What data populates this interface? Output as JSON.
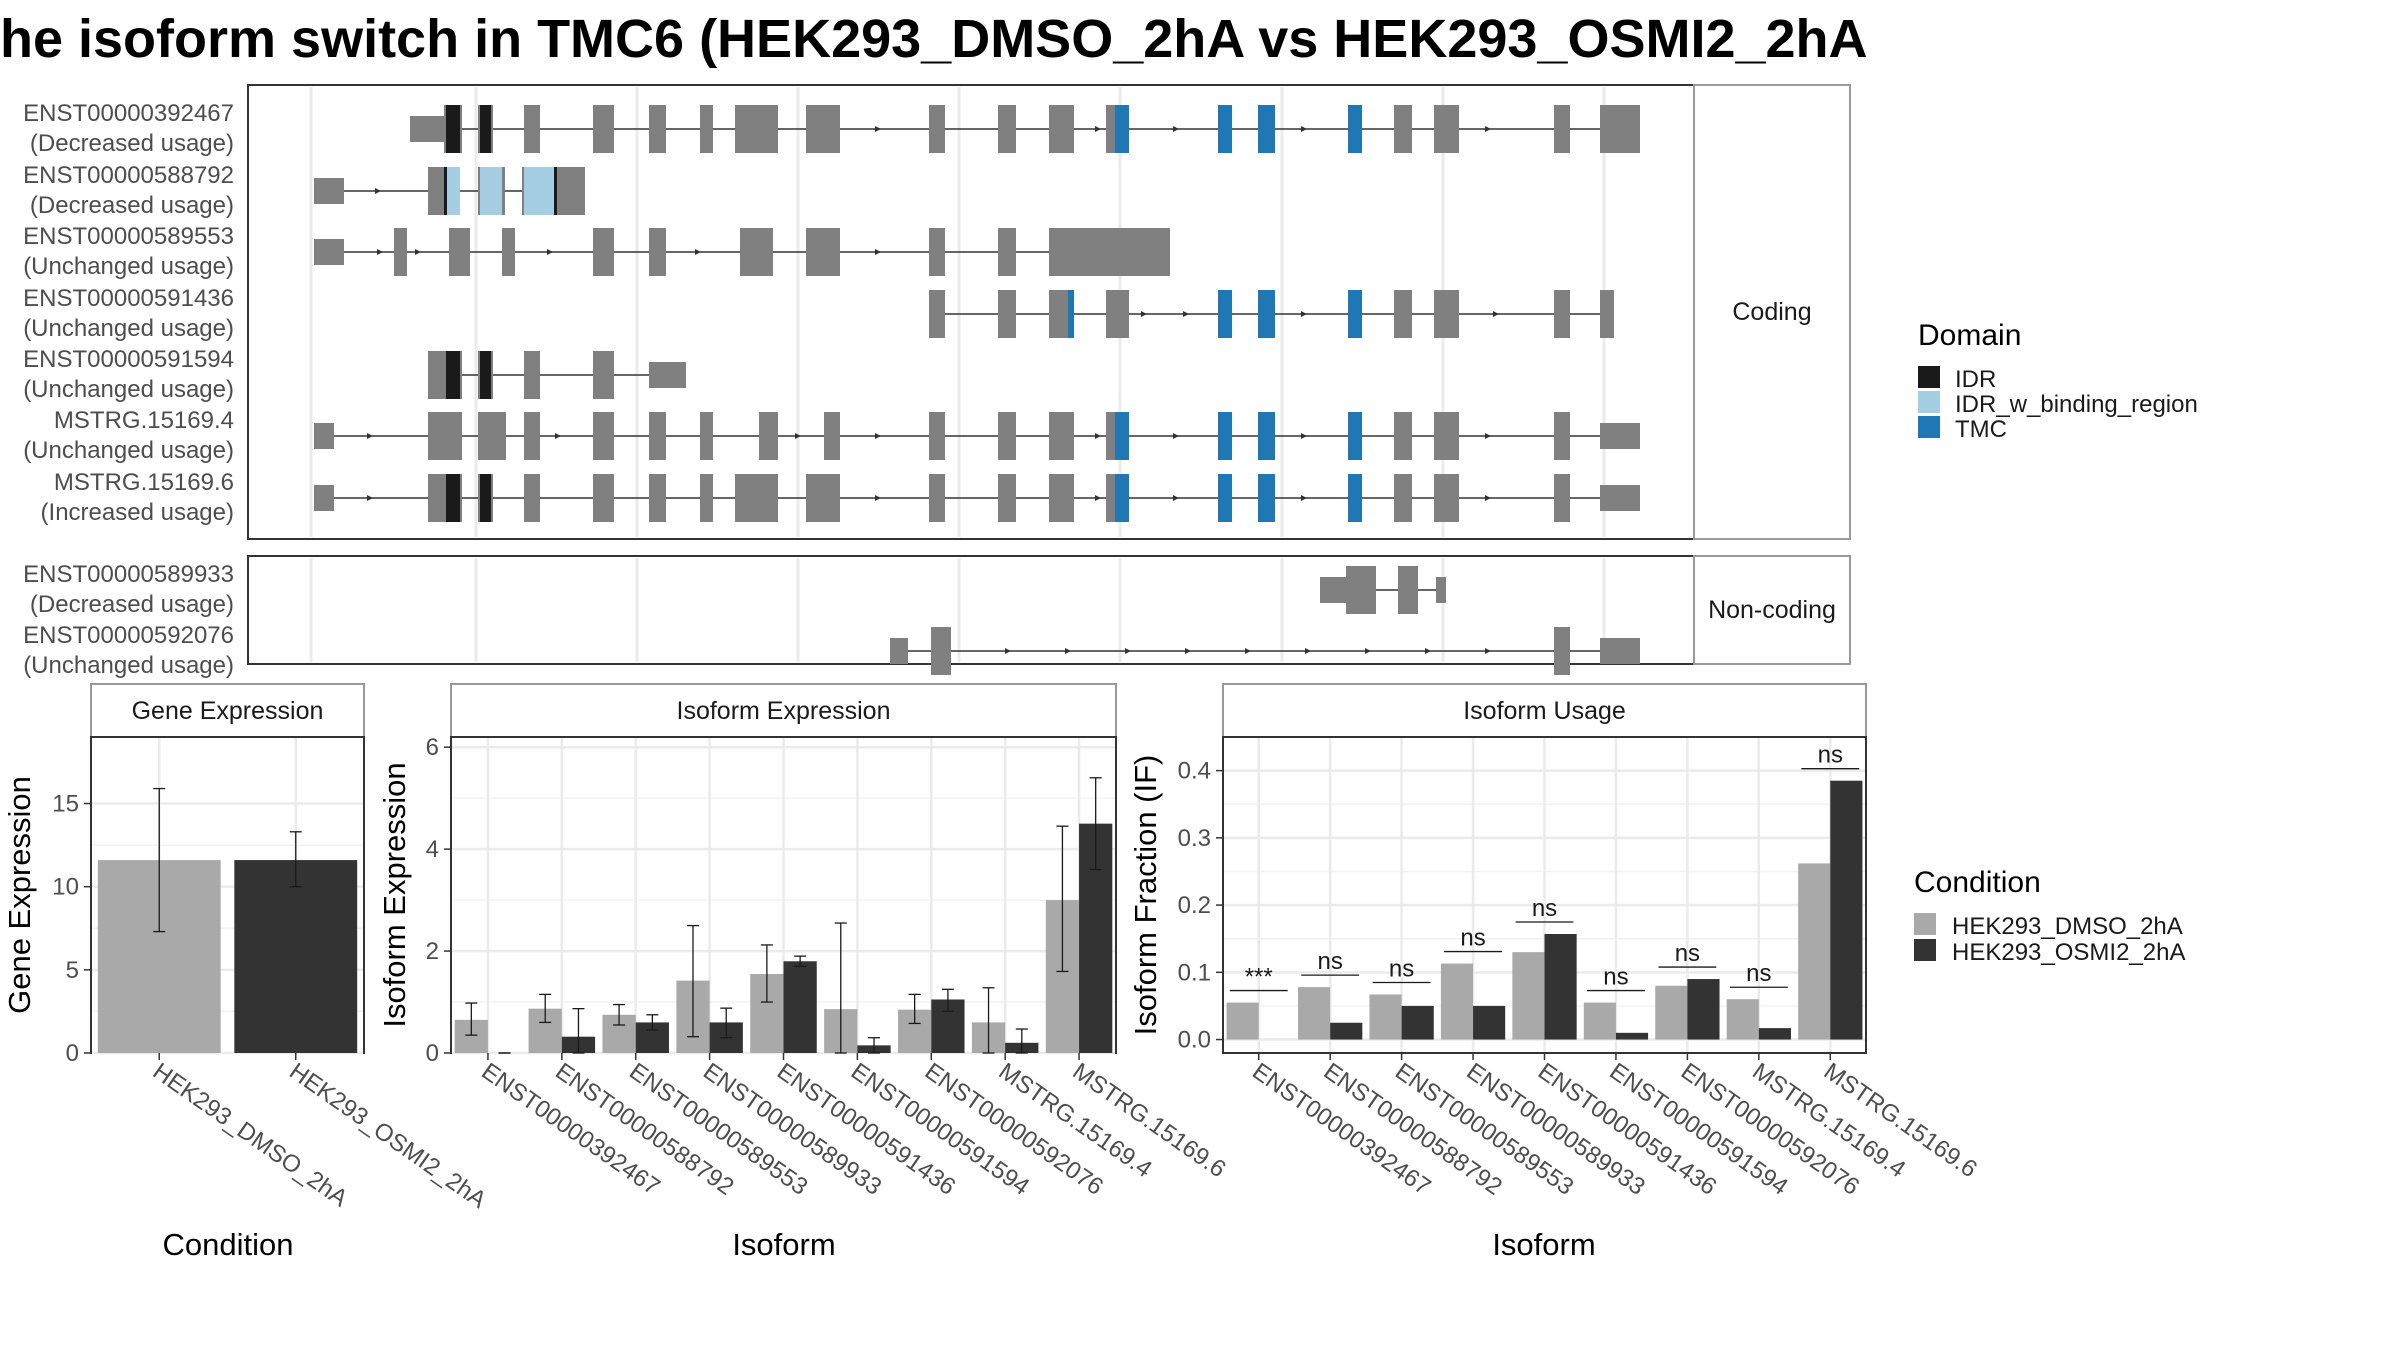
{
  "title": "he isoform switch in TMC6 (HEK293_DMSO_2hA vs HEK293_OSMI2_2hA",
  "colors": {
    "exon": "#808080",
    "IDR": "#1a1a1a",
    "IDR_w_binding_region": "#a6cee3",
    "TMC": "#1f78b4",
    "cond1": "#a9a9a9",
    "cond2": "#333333",
    "grid": "#ebebeb",
    "panel_border": "#333333",
    "strip_border": "#999999"
  },
  "structure": {
    "coding_label": "Coding",
    "noncoding_label": "Non-coding",
    "coding": [
      {
        "id": "ENST00000392467",
        "usage": "(Decreased usage)"
      },
      {
        "id": "ENST00000588792",
        "usage": "(Decreased usage)"
      },
      {
        "id": "ENST00000589553",
        "usage": "(Unchanged usage)"
      },
      {
        "id": "ENST00000591436",
        "usage": "(Unchanged usage)"
      },
      {
        "id": "ENST00000591594",
        "usage": "(Unchanged usage)"
      },
      {
        "id": "MSTRG.15169.4",
        "usage": "(Unchanged usage)"
      },
      {
        "id": "MSTRG.15169.6",
        "usage": "(Increased usage)"
      }
    ],
    "noncoding": [
      {
        "id": "ENST00000589933",
        "usage": "(Decreased usage)"
      },
      {
        "id": "ENST00000592076",
        "usage": "(Unchanged usage)"
      }
    ]
  },
  "legend_domain": {
    "title": "Domain",
    "items": [
      {
        "label": "IDR",
        "color_key": "IDR"
      },
      {
        "label": "IDR_w_binding_region",
        "color_key": "IDR_w_binding_region"
      },
      {
        "label": "TMC",
        "color_key": "TMC"
      }
    ]
  },
  "legend_condition": {
    "title": "Condition",
    "items": [
      {
        "label": "HEK293_DMSO_2hA",
        "color_key": "cond1"
      },
      {
        "label": "HEK293_OSMI2_2hA",
        "color_key": "cond2"
      }
    ]
  },
  "chart_data": [
    {
      "type": "bar",
      "title": "Gene Expression",
      "xlabel": "Condition",
      "ylabel": "Gene Expression",
      "ylim": [
        0,
        19
      ],
      "yticks": [
        0,
        5,
        10,
        15
      ],
      "categories": [
        "HEK293_DMSO_2hA",
        "HEK293_OSMI2_2hA"
      ],
      "values": [
        11.6,
        11.6
      ],
      "errors_low": [
        7.3,
        10.0
      ],
      "errors_high": [
        15.9,
        13.3
      ]
    },
    {
      "type": "bar",
      "title": "Isoform Expression",
      "xlabel": "Isoform",
      "ylabel": "Isoform Expression",
      "ylim": [
        0,
        6.2
      ],
      "yticks": [
        0,
        2,
        4,
        6
      ],
      "categories": [
        "ENST00000392467",
        "ENST00000588792",
        "ENST00000589553",
        "ENST00000589933",
        "ENST00000591436",
        "ENST00000591594",
        "ENST00000592076",
        "MSTRG.15169.4",
        "MSTRG.15169.6"
      ],
      "series": [
        {
          "name": "HEK293_DMSO_2hA",
          "values": [
            0.65,
            0.87,
            0.75,
            1.42,
            1.55,
            0.86,
            0.85,
            0.6,
            3.0
          ],
          "err_low": [
            0.35,
            0.6,
            0.55,
            0.32,
            1.0,
            0.0,
            0.58,
            0.0,
            1.6
          ],
          "err_high": [
            0.98,
            1.15,
            0.95,
            2.5,
            2.12,
            2.55,
            1.15,
            1.28,
            4.45
          ]
        },
        {
          "name": "HEK293_OSMI2_2hA",
          "values": [
            0.0,
            0.32,
            0.6,
            0.6,
            1.8,
            0.15,
            1.05,
            0.2,
            4.5
          ],
          "err_low": [
            0.0,
            0.0,
            0.45,
            0.3,
            1.7,
            0.0,
            0.82,
            0.0,
            3.6
          ],
          "err_high": [
            0.0,
            0.87,
            0.75,
            0.88,
            1.9,
            0.3,
            1.25,
            0.47,
            5.4
          ]
        }
      ]
    },
    {
      "type": "bar",
      "title": "Isoform Usage",
      "xlabel": "Isoform",
      "ylabel": "Isoform Fraction (IF)",
      "ylim": [
        -0.02,
        0.45
      ],
      "yticks": [
        0.0,
        0.1,
        0.2,
        0.3,
        0.4
      ],
      "ytick_labels": [
        "0.0",
        "0.1",
        "0.2",
        "0.3",
        "0.4"
      ],
      "categories": [
        "ENST00000392467",
        "ENST00000588792",
        "ENST00000589553",
        "ENST00000589933",
        "ENST00000591436",
        "ENST00000591594",
        "ENST00000592076",
        "MSTRG.15169.4",
        "MSTRG.15169.6"
      ],
      "series": [
        {
          "name": "HEK293_DMSO_2hA",
          "values": [
            0.055,
            0.078,
            0.067,
            0.113,
            0.13,
            0.055,
            0.08,
            0.06,
            0.262
          ]
        },
        {
          "name": "HEK293_OSMI2_2hA",
          "values": [
            0.0,
            0.025,
            0.05,
            0.05,
            0.157,
            0.01,
            0.09,
            0.017,
            0.385
          ]
        }
      ],
      "significance": [
        "***",
        "ns",
        "ns",
        "ns",
        "ns",
        "ns",
        "ns",
        "ns",
        "ns"
      ]
    }
  ]
}
